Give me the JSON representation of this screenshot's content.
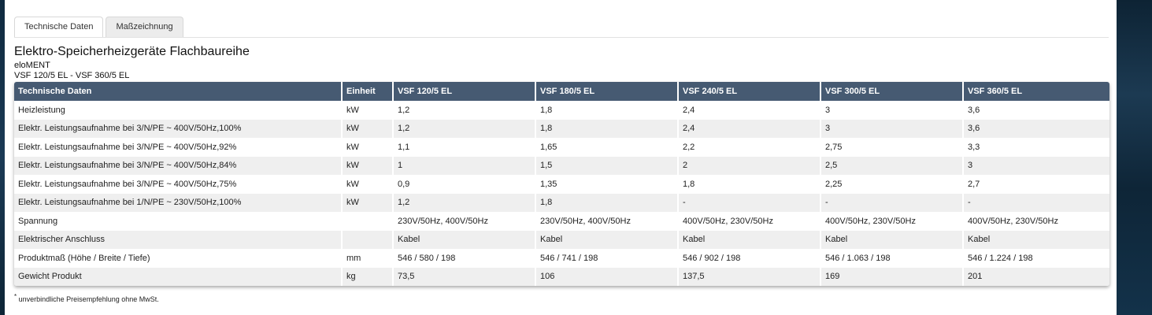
{
  "tabs": [
    {
      "label": "Technische Daten",
      "active": true
    },
    {
      "label": "Maßzeichnung",
      "active": false
    }
  ],
  "title": "Elektro-Speicherheizgeräte Flachbaureihe",
  "brand": "eloMENT",
  "model_range": "VSF 120/5 EL - VSF 360/5 EL",
  "table": {
    "headers": [
      "Technische Daten",
      "Einheit",
      "VSF 120/5 EL",
      "VSF 180/5 EL",
      "VSF 240/5 EL",
      "VSF 300/5 EL",
      "VSF 360/5 EL"
    ],
    "rows": [
      [
        "Heizleistung",
        "kW",
        "1,2",
        "1,8",
        "2,4",
        "3",
        "3,6"
      ],
      [
        "Elektr. Leistungsaufnahme bei 3/N/PE ~ 400V/50Hz,100%",
        "kW",
        "1,2",
        "1,8",
        "2,4",
        "3",
        "3,6"
      ],
      [
        "Elektr. Leistungsaufnahme bei 3/N/PE ~ 400V/50Hz,92%",
        "kW",
        "1,1",
        "1,65",
        "2,2",
        "2,75",
        "3,3"
      ],
      [
        "Elektr. Leistungsaufnahme bei 3/N/PE ~ 400V/50Hz,84%",
        "kW",
        "1",
        "1,5",
        "2",
        "2,5",
        "3"
      ],
      [
        "Elektr. Leistungsaufnahme bei 3/N/PE ~ 400V/50Hz,75%",
        "kW",
        "0,9",
        "1,35",
        "1,8",
        "2,25",
        "2,7"
      ],
      [
        "Elektr. Leistungsaufnahme bei 1/N/PE ~ 230V/50Hz,100%",
        "kW",
        "1,2",
        "1,8",
        "-",
        "-",
        "-"
      ],
      [
        "Spannung",
        "",
        "230V/50Hz, 400V/50Hz",
        "230V/50Hz, 400V/50Hz",
        "400V/50Hz, 230V/50Hz",
        "400V/50Hz, 230V/50Hz",
        "400V/50Hz, 230V/50Hz"
      ],
      [
        "Elektrischer Anschluss",
        "",
        "Kabel",
        "Kabel",
        "Kabel",
        "Kabel",
        "Kabel"
      ],
      [
        "Produktmaß (Höhe / Breite / Tiefe)",
        "mm",
        "546 / 580 / 198",
        "546 / 741 / 198",
        "546 / 902 / 198",
        "546 / 1.063 / 198",
        "546 / 1.224 / 198"
      ],
      [
        "Gewicht Produkt",
        "kg",
        "73,5",
        "106",
        "137,5",
        "169",
        "201"
      ]
    ]
  },
  "footnote": {
    "marker": "*",
    "text": "unverbindliche Preisempfehlung ohne MwSt."
  },
  "colors": {
    "header_bg": "#465a72",
    "row_alt_bg": "#efefef",
    "background_strip": "#1c3a52"
  }
}
